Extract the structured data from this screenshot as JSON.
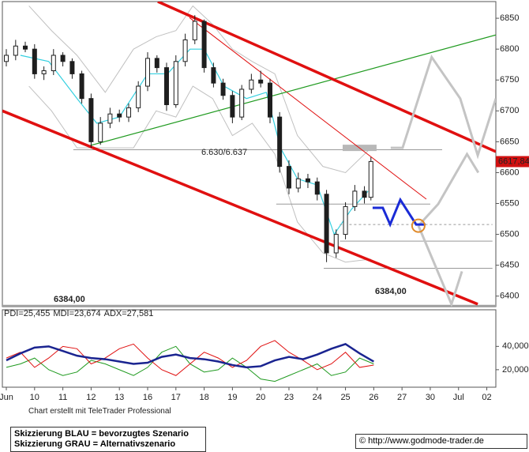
{
  "chart_data": [
    {
      "type": "candlestick",
      "xlim": [
        -0.14,
        17.32
      ],
      "ylim": [
        6383,
        6877
      ],
      "xticks": [
        {
          "value": 0,
          "label": "Jun"
        },
        1,
        2,
        3,
        4,
        5,
        6,
        7,
        8,
        9,
        10,
        11,
        12,
        13,
        14,
        15,
        16,
        17
      ],
      "xtick_labels": [
        "Jun",
        "10",
        "11",
        "12",
        "13",
        "16",
        "17",
        "18",
        "19",
        "20",
        "23",
        "24",
        "25",
        "26",
        "27",
        "30",
        "Jul",
        "02"
      ],
      "yticks": [
        6400,
        6450,
        6500,
        6550,
        6600,
        6650,
        6700,
        6750,
        6800,
        6850
      ],
      "up_color": "#ffffff",
      "down_color": "#1e1e1e",
      "candles": {
        "x": [
          0,
          0.33,
          0.67,
          1,
          1.33,
          1.67,
          2,
          2.33,
          2.67,
          3,
          3.33,
          3.67,
          4,
          4.33,
          4.67,
          5,
          5.33,
          5.67,
          6,
          6.33,
          6.67,
          7,
          7.33,
          7.67,
          8,
          8.33,
          8.67,
          9,
          9.33,
          9.67,
          10,
          10.33,
          10.67,
          11,
          11.33,
          11.67,
          12,
          12.33,
          12.67,
          12.9
        ],
        "open": [
          6780,
          6790,
          6805,
          6800,
          6760,
          6765,
          6790,
          6780,
          6760,
          6720,
          6650,
          6680,
          6695,
          6690,
          6705,
          6740,
          6785,
          6770,
          6710,
          6780,
          6815,
          6845,
          6770,
          6745,
          6725,
          6690,
          6735,
          6750,
          6745,
          6690,
          6610,
          6575,
          6590,
          6585,
          6565,
          6470,
          6500,
          6545,
          6570,
          6560
        ],
        "high": [
          6800,
          6815,
          6812,
          6808,
          6772,
          6800,
          6795,
          6785,
          6765,
          6728,
          6690,
          6705,
          6702,
          6712,
          6748,
          6795,
          6790,
          6778,
          6790,
          6825,
          6855,
          6848,
          6778,
          6752,
          6732,
          6742,
          6760,
          6765,
          6752,
          6698,
          6620,
          6600,
          6598,
          6592,
          6572,
          6508,
          6552,
          6580,
          6578,
          6625
        ],
        "low": [
          6772,
          6782,
          6795,
          6752,
          6750,
          6758,
          6772,
          6752,
          6712,
          6640,
          6645,
          6672,
          6682,
          6682,
          6698,
          6732,
          6762,
          6700,
          6705,
          6772,
          6808,
          6762,
          6738,
          6718,
          6680,
          6685,
          6728,
          6738,
          6680,
          6600,
          6565,
          6568,
          6575,
          6555,
          6455,
          6462,
          6492,
          6538,
          6550,
          6555
        ],
        "close": [
          6790,
          6805,
          6800,
          6760,
          6765,
          6790,
          6780,
          6760,
          6720,
          6650,
          6680,
          6695,
          6690,
          6705,
          6740,
          6785,
          6770,
          6710,
          6780,
          6815,
          6845,
          6770,
          6745,
          6725,
          6690,
          6735,
          6750,
          6745,
          6690,
          6610,
          6575,
          6590,
          6585,
          6565,
          6470,
          6500,
          6545,
          6570,
          6560,
          6618
        ]
      },
      "lines": [
        {
          "color": "#c0c0c0",
          "width": 1,
          "x": [
            0.8,
            1.6,
            2.5,
            3.5,
            4.5,
            5.3,
            6,
            6.6,
            7.3,
            8,
            8.7,
            9.5,
            10.3,
            11.2,
            12,
            12.9
          ],
          "y": [
            6870,
            6830,
            6790,
            6730,
            6800,
            6820,
            6830,
            6870,
            6840,
            6800,
            6780,
            6760,
            6660,
            6610,
            6600,
            6640
          ]
        },
        {
          "color": "#c0c0c0",
          "width": 1,
          "x": [
            0.8,
            1.6,
            2.5,
            3.5,
            4.5,
            5.3,
            6,
            6.6,
            7.3,
            8,
            8.7,
            9.5,
            10.3,
            11.2,
            12,
            12.9
          ],
          "y": [
            6740,
            6700,
            6640,
            6640,
            6640,
            6700,
            6690,
            6740,
            6720,
            6660,
            6680,
            6630,
            6520,
            6470,
            6455,
            6460
          ]
        },
        {
          "color": "#35d0e0",
          "width": 1.2,
          "x": [
            0.5,
            1.5,
            2.5,
            3.2,
            4,
            5,
            5.7,
            6.5,
            7,
            7.7,
            8.5,
            9.2,
            9.7,
            10.3,
            11,
            11.6,
            12.2,
            12.8
          ],
          "y": [
            6790,
            6780,
            6720,
            6680,
            6690,
            6760,
            6760,
            6800,
            6800,
            6740,
            6720,
            6730,
            6640,
            6590,
            6580,
            6500,
            6540,
            6570
          ]
        },
        {
          "color": "#999999",
          "width": 1,
          "x": [
            2.37,
            15.42
          ],
          "y": [
            6637,
            6637
          ]
        },
        {
          "color": "#999999",
          "width": 1,
          "x": [
            9.55,
            15.0
          ],
          "y": [
            6549,
            6549
          ]
        },
        {
          "color": "#999999",
          "width": 1,
          "dash": true,
          "x": [
            11.8,
            17.2
          ],
          "y": [
            6516,
            6516
          ]
        },
        {
          "color": "#999999",
          "width": 1,
          "x": [
            11.8,
            17.2
          ],
          "y": [
            6489,
            6489
          ]
        },
        {
          "color": "#999999",
          "width": 1,
          "x": [
            11.23,
            17.2
          ],
          "y": [
            6445,
            6445
          ]
        },
        {
          "color": "#b8b8b8",
          "width": 8,
          "x": [
            11.9,
            13.1
          ],
          "y": [
            6640,
            6640
          ]
        },
        {
          "color": "#a0a0a0",
          "width": 3,
          "x": [
            -0.14,
            17.32
          ],
          "y": [
            6384,
            6384
          ]
        },
        {
          "color": "#e01010",
          "width": 1,
          "x": [
            6.48,
            14.86
          ],
          "y": [
            6851,
            6557
          ]
        },
        {
          "color": "#1f9a1f",
          "width": 1.2,
          "x": [
            2.9,
            17.32
          ],
          "y": [
            6643,
            6823
          ]
        },
        {
          "color": "#e01010",
          "width": 3.5,
          "x": [
            5.36,
            17.32
          ],
          "y": [
            6877,
            6634
          ]
        },
        {
          "color": "#e01010",
          "width": 3.5,
          "x": [
            -0.14,
            16.68
          ],
          "y": [
            6700,
            6387
          ]
        },
        {
          "color": "#c4c4c4",
          "width": 3,
          "x": [
            13.6,
            14.02,
            15.05,
            16.06,
            16.68,
            17.32
          ],
          "y": [
            6640,
            6640,
            6787,
            6720,
            6628,
            6720
          ]
        },
        {
          "color": "#c4c4c4",
          "width": 3,
          "x": [
            14.58,
            15.28,
            15.92,
            16.3,
            16.7
          ],
          "y": [
            6514,
            6549,
            6600,
            6630,
            6600
          ]
        },
        {
          "color": "#c4c4c4",
          "width": 3,
          "x": [
            14.58,
            15.75,
            16.12
          ],
          "y": [
            6514,
            6387,
            6440
          ]
        },
        {
          "color": "#1a2bd6",
          "width": 3,
          "x": [
            12.96,
            13.32,
            13.58,
            13.94,
            14.5,
            14.83
          ],
          "y": [
            6543,
            6543,
            6516,
            6556,
            6516,
            6516
          ]
        }
      ],
      "marker": {
        "x": 14.58,
        "y": 6514,
        "color": "#e08a2a"
      },
      "last_price": {
        "value": 6617.84,
        "label": "6617,84"
      },
      "level_label": "6.630/6.637",
      "support_label": "6384,00"
    },
    {
      "type": "line",
      "ylim": [
        5,
        71.4
      ],
      "yticks": [
        {
          "value": 20,
          "label": "20,000"
        },
        {
          "value": 40,
          "label": "40,000"
        }
      ],
      "x": [
        0,
        0.5,
        1,
        1.5,
        2,
        2.5,
        3,
        3.5,
        4,
        4.5,
        5,
        5.5,
        6,
        6.5,
        7,
        7.5,
        8,
        8.5,
        9,
        9.5,
        10,
        10.5,
        11,
        11.5,
        12,
        12.5,
        13
      ],
      "series": [
        {
          "name": "PDI=25,455",
          "color": "#1f9a1f",
          "width": 1,
          "values": [
            22,
            25,
            30,
            20,
            15,
            18,
            28,
            25,
            20,
            15,
            22,
            35,
            40,
            25,
            18,
            20,
            30,
            22,
            12,
            10,
            15,
            20,
            25,
            15,
            18,
            30,
            25
          ]
        },
        {
          "name": "MDI=23,674",
          "color": "#e01010",
          "width": 1,
          "values": [
            30,
            35,
            22,
            30,
            40,
            38,
            25,
            30,
            38,
            42,
            30,
            20,
            15,
            25,
            35,
            30,
            22,
            28,
            40,
            45,
            35,
            28,
            20,
            25,
            35,
            22,
            24
          ]
        },
        {
          "name": "ADX=27,581",
          "color": "#1a2490",
          "width": 2.5,
          "values": [
            28,
            34,
            39,
            40,
            36,
            32,
            30,
            29,
            27,
            25,
            26,
            31,
            33,
            30,
            29,
            27,
            24,
            22,
            23,
            28,
            31,
            29,
            33,
            38,
            42,
            34,
            27
          ]
        }
      ]
    }
  ],
  "footer": {
    "credit": "Chart erstellt mit TeleTrader Professional",
    "note_blue": "Skizzierung BLAU = bevorzugtes Szenario",
    "note_gray": "Skizzierung GRAU = Alternativszenario",
    "url": "© http://www.godmode-trader.de"
  }
}
